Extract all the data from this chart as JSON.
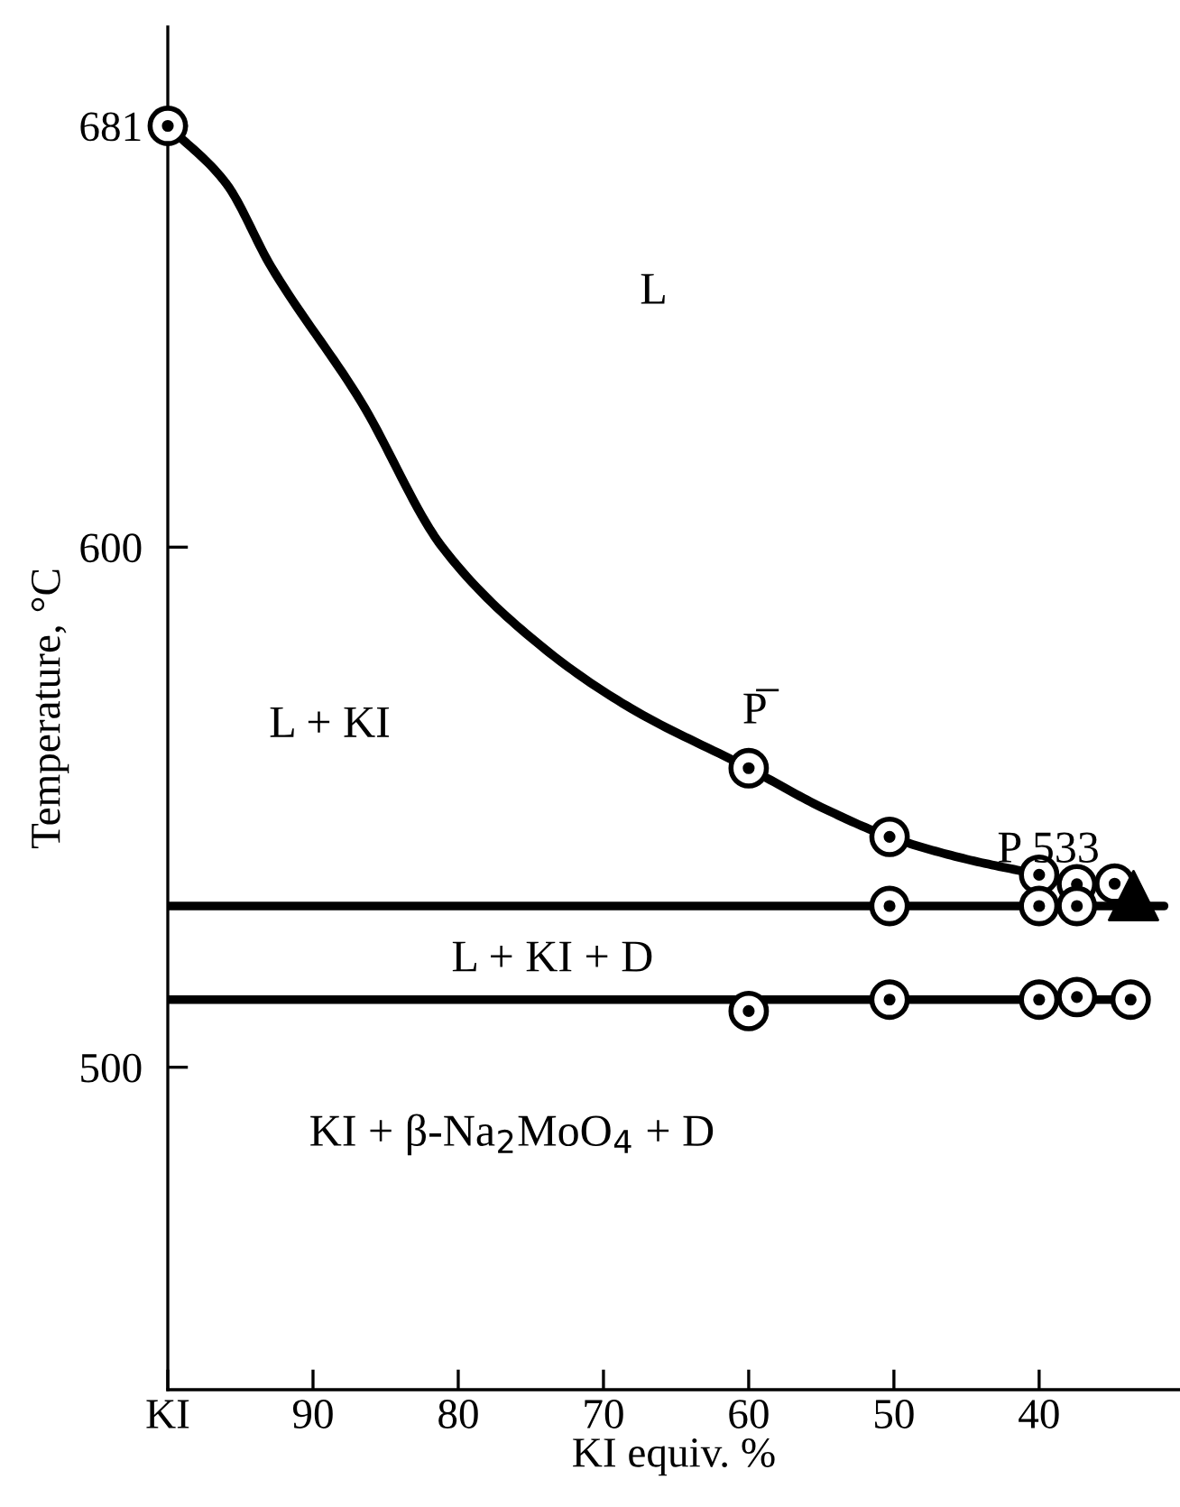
{
  "chart_data": {
    "type": "line",
    "xlabel": "KI equiv. %",
    "ylabel": "Temperature, °C",
    "xlim": [
      100,
      30.3
    ],
    "ylim": [
      438,
      700
    ],
    "xticks": [
      {
        "value": 100,
        "label": "KI"
      },
      90,
      80,
      70,
      60,
      50,
      40
    ],
    "yticks": [
      500,
      600,
      681
    ],
    "grid": false,
    "legend": false,
    "series": [
      {
        "color": "#000000",
        "x": [
          100,
          96,
          92.9,
          86.7,
          81.1,
          74.3,
          68.1,
          60,
          55,
          50.3,
          45,
          40,
          37.4,
          34.8,
          33.5
        ],
        "values": [
          681,
          670,
          654,
          628,
          600,
          581,
          569,
          557.5,
          550,
          544.3,
          540,
          537,
          535.2,
          535.3,
          533
        ]
      },
      {
        "color": "#000000",
        "x": [
          100,
          31.4
        ],
        "values": [
          531,
          531
        ]
      },
      {
        "color": "#000000",
        "x": [
          100,
          33.7
        ],
        "values": [
          513,
          513
        ]
      },
      {
        "type": "scatter",
        "marker": "circle",
        "color": "#000000",
        "x": [
          100,
          60,
          50.3,
          40,
          37.4,
          34.8
        ],
        "values": [
          681,
          557.5,
          544.3,
          537,
          535.2,
          535.3
        ]
      },
      {
        "type": "scatter",
        "marker": "circle",
        "color": "#000000",
        "x": [
          50.3,
          40,
          37.4
        ],
        "values": [
          531,
          531,
          531
        ]
      },
      {
        "type": "scatter",
        "marker": "circle",
        "color": "#000000",
        "x": [
          60,
          50.3,
          40,
          37.4,
          33.7
        ],
        "values": [
          510.8,
          513,
          513,
          513.5,
          513
        ]
      },
      {
        "type": "scatter",
        "marker": "triangle",
        "color": "#000000",
        "x": [
          33.5
        ],
        "values": [
          533
        ]
      }
    ],
    "annotations": [
      "L",
      "L + KI",
      "P̅",
      "P 533",
      "L + KI + D",
      "KI + β-Na$_{2}$MoO$_{4}$ + D"
    ]
  }
}
